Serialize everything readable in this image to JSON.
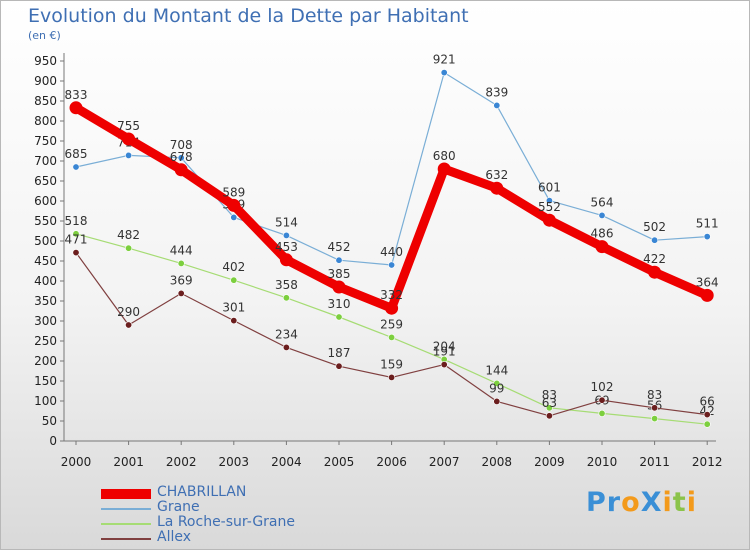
{
  "title": "Evolution du Montant de la Dette par Habitant",
  "subtitle": "(en €)",
  "logo": {
    "text": "Proxiti",
    "letters": [
      {
        "ch": "P",
        "color": "#3a8fd6"
      },
      {
        "ch": "r",
        "color": "#3a8fd6"
      },
      {
        "ch": "o",
        "color": "#f39a1b"
      },
      {
        "ch": "X",
        "color": "#3a8fd6"
      },
      {
        "ch": "i",
        "color": "#f39a1b"
      },
      {
        "ch": "t",
        "color": "#8bc34a"
      },
      {
        "ch": "i",
        "color": "#f39a1b"
      }
    ]
  },
  "chart_data": {
    "type": "line",
    "title": "Evolution du Montant de la Dette par Habitant",
    "subtitle": "(en €)",
    "x": [
      "2000",
      "2001",
      "2002",
      "2003",
      "2004",
      "2005",
      "2006",
      "2007",
      "2008",
      "2009",
      "2010",
      "2011",
      "2012"
    ],
    "ylim": [
      0,
      950
    ],
    "yticks": [
      0,
      50,
      100,
      150,
      200,
      250,
      300,
      350,
      400,
      450,
      500,
      550,
      600,
      650,
      700,
      750,
      800,
      850,
      900,
      950
    ],
    "grid": false,
    "legend_position": "bottom-left",
    "series": [
      {
        "name": "CHABRILLAN",
        "color": "#ee0000",
        "marker": "#ee0000",
        "width": 9,
        "values": [
          833,
          755,
          678,
          589,
          453,
          385,
          332,
          680,
          632,
          552,
          486,
          422,
          364
        ]
      },
      {
        "name": "Grane",
        "color": "#7aaed6",
        "marker": "#3a86d4",
        "width": 1.2,
        "values": [
          685,
          714,
          708,
          559,
          514,
          452,
          440,
          921,
          839,
          601,
          564,
          502,
          511
        ]
      },
      {
        "name": "La Roche-sur-Grane",
        "color": "#a6dc74",
        "marker": "#7ccf3e",
        "width": 1.2,
        "values": [
          518,
          482,
          444,
          402,
          358,
          310,
          259,
          204,
          144,
          83,
          69,
          56,
          42
        ]
      },
      {
        "name": "Allex",
        "color": "#804040",
        "marker": "#6b1e1e",
        "width": 1.2,
        "values": [
          471,
          290,
          369,
          301,
          234,
          187,
          159,
          191,
          99,
          63,
          102,
          83,
          66
        ]
      }
    ]
  }
}
